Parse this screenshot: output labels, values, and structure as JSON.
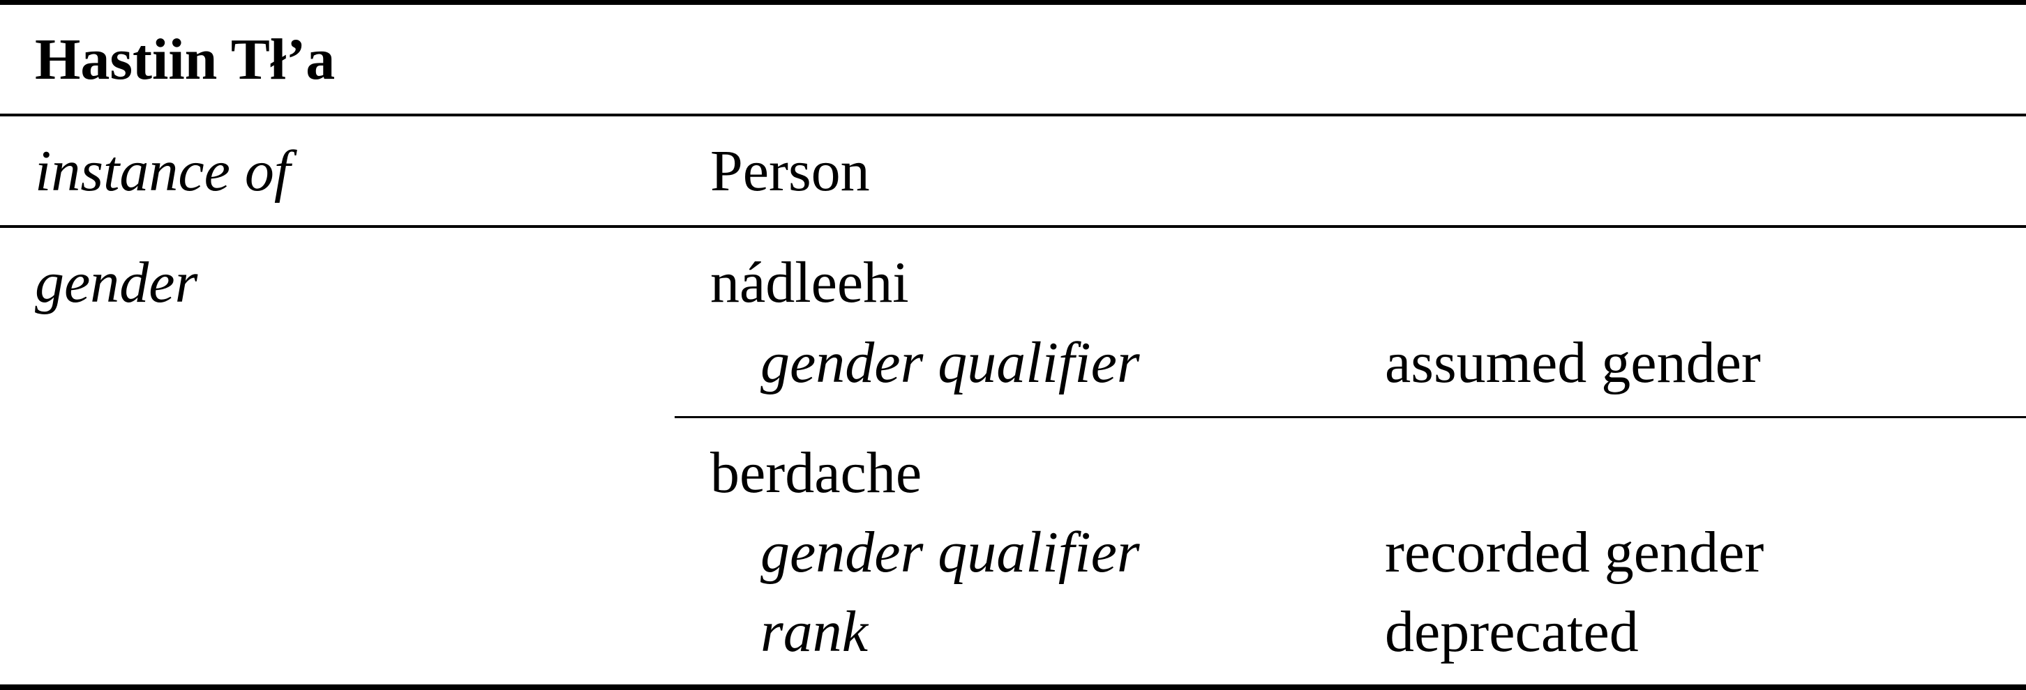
{
  "title": "Hastiin Tł’a",
  "rows": [
    {
      "property": "instance of",
      "value": "Person"
    },
    {
      "property": "gender",
      "values": [
        {
          "value": "nádleehi",
          "qualifiers": [
            {
              "property": "gender qualifier",
              "value": "assumed gender"
            }
          ]
        },
        {
          "value": "berdache",
          "qualifiers": [
            {
              "property": "gender qualifier",
              "value": "recorded gender"
            },
            {
              "property": "rank",
              "value": "deprecated"
            }
          ]
        }
      ]
    }
  ]
}
